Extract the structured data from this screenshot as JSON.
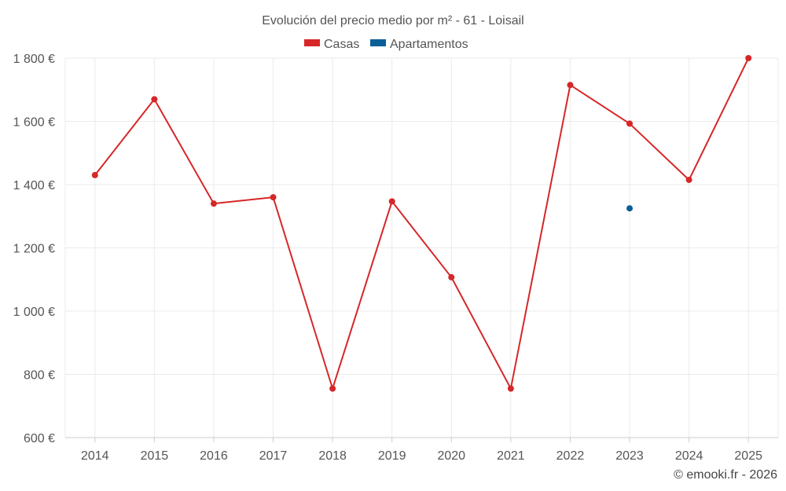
{
  "chart_data": {
    "type": "line",
    "title": "Evolución del precio medio por m² - 61 - Loisail",
    "categories": [
      "2014",
      "2015",
      "2016",
      "2017",
      "2018",
      "2019",
      "2020",
      "2021",
      "2022",
      "2023",
      "2024",
      "2025"
    ],
    "series": [
      {
        "name": "Casas",
        "color": "#d62728",
        "values": [
          1430,
          1670,
          1340,
          1360,
          755,
          1347,
          1107,
          755,
          1715,
          1593,
          1415,
          1800
        ]
      },
      {
        "name": "Apartamentos",
        "color": "#0b5f97",
        "values": [
          null,
          null,
          null,
          null,
          null,
          null,
          null,
          null,
          null,
          1325,
          null,
          null
        ]
      }
    ],
    "y_ticks": [
      600,
      800,
      1000,
      1200,
      1400,
      1600,
      1800
    ],
    "y_tick_labels": [
      "600 €",
      "800 €",
      "1 000 €",
      "1 200 €",
      "1 400 €",
      "1 600 €",
      "1 800 €"
    ],
    "ylim": [
      600,
      1800
    ],
    "xlabel": "",
    "ylabel": "",
    "legend_position": "top-center",
    "grid": true
  },
  "credit": "© emooki.fr - 2026"
}
